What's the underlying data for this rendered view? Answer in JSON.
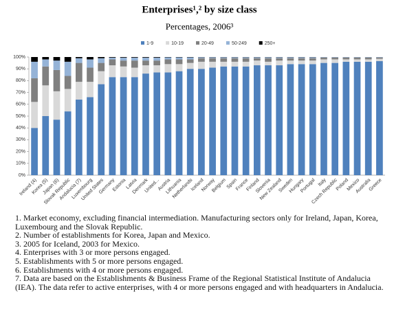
{
  "chart_data": {
    "type": "stacked_bar",
    "title": "Enterprises¹,² by size class",
    "subtitle": "Percentages, 2006³",
    "categories": [
      "Ireland (4)",
      "Korea (5)",
      "Japan (6)",
      "Slovak Republic",
      "Andalucia (7)",
      "Luxembourg",
      "United States",
      "Germany",
      "Estonia",
      "Latvia",
      "Denmark",
      "United...",
      "Austria",
      "Lithuania",
      "Netherlands",
      "Iceland",
      "Norway",
      "Belgium",
      "Spain",
      "France",
      "Finland",
      "Slovenia",
      "New Zealand",
      "Sweden",
      "Hungary",
      "Portugal",
      "Italy",
      "Czech Republic",
      "Poland",
      "Mexico",
      "Australia",
      "Greece"
    ],
    "series": [
      {
        "name": "1-9",
        "color": "#4f81bd",
        "values": [
          40,
          50,
          47,
          54,
          64,
          66,
          77,
          83,
          83,
          83,
          86,
          87,
          87,
          88,
          90,
          90,
          91,
          92,
          92,
          92,
          93,
          93,
          93,
          94,
          94,
          94,
          95,
          95,
          96,
          96,
          96,
          96.5
        ]
      },
      {
        "name": "10-19",
        "color": "#d9d9d9",
        "values": [
          22,
          26,
          24,
          19,
          15,
          13,
          11,
          10,
          9,
          8,
          7,
          6,
          7,
          6,
          5,
          6,
          5,
          4,
          4,
          4,
          4,
          3,
          4,
          3,
          3,
          3,
          3,
          3,
          2,
          2,
          2,
          2
        ]
      },
      {
        "name": "20-49",
        "color": "#808080",
        "values": [
          20,
          16,
          18,
          11,
          16,
          12,
          7,
          5,
          5,
          6,
          4,
          4,
          4,
          4,
          3,
          3,
          3,
          3,
          3,
          3,
          2,
          3,
          2,
          2,
          2,
          2,
          1.5,
          1.5,
          1.5,
          1.5,
          1.5,
          1
        ]
      },
      {
        "name": "50-249",
        "color": "#95b3d7",
        "values": [
          14,
          6,
          8,
          12,
          4,
          7,
          4,
          1.5,
          2.5,
          2.5,
          2.5,
          2.5,
          1.7,
          1.7,
          1.7,
          0.8,
          0.8,
          0.8,
          0.8,
          0.8,
          0.8,
          0.8,
          0.8,
          0.8,
          0.8,
          0.8,
          0.4,
          0.4,
          0.4,
          0.4,
          0.4,
          0.4
        ]
      },
      {
        "name": "250+",
        "color": "#000000",
        "values": [
          4,
          2,
          3,
          4,
          1,
          2,
          1,
          0.5,
          0.5,
          0.5,
          0.5,
          0.5,
          0.3,
          0.3,
          0.3,
          0.2,
          0.2,
          0.2,
          0.2,
          0.2,
          0.2,
          0.2,
          0.2,
          0.2,
          0.2,
          0.2,
          0.1,
          0.1,
          0.1,
          0.1,
          0.1,
          0.1
        ]
      }
    ],
    "ylim": [
      0,
      100
    ],
    "yticks": [
      {
        "value": 0,
        "label": "0%"
      },
      {
        "value": 10,
        "label": "10%"
      },
      {
        "value": 20,
        "label": "20%"
      },
      {
        "value": 30,
        "label": "30%"
      },
      {
        "value": 40,
        "label": "40%"
      },
      {
        "value": 50,
        "label": "50%"
      },
      {
        "value": 60,
        "label": "60%"
      },
      {
        "value": 70,
        "label": "70%"
      },
      {
        "value": 80,
        "label": "80%"
      },
      {
        "value": 90,
        "label": "90%"
      },
      {
        "value": 100,
        "label": "100%"
      }
    ],
    "notes": [
      "1. Market economy, excluding financial intermediation. Manufacturing sectors only for Ireland, Japan, Korea, Luxembourg and the Slovak Republic.",
      "2. Number of establishments for Korea, Japan and Mexico.",
      "3. 2005 for Iceland, 2003 for Mexico.",
      "4. Enterprises with 3 or more persons engaged.",
      "5. Establishments with 5 or more persons engaged.",
      "6. Establishments with 4 or more persons engaged.",
      "7. Data are based on the Establishments & Business Frame of the Regional Statistical Institute of Andalucia (IEA). The data refer to active enterprises, with 4 or more persons engaged and with headquarters in Andalucia."
    ]
  }
}
